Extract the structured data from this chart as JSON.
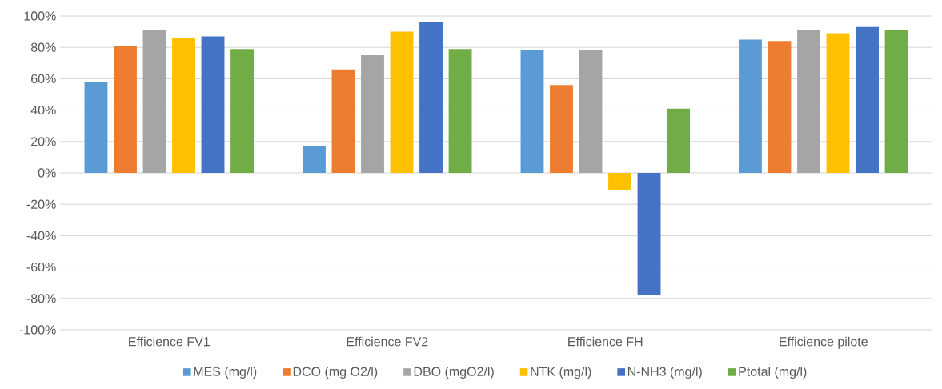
{
  "chart_data": {
    "type": "bar",
    "categories": [
      "Efficience FV1",
      "Efficience FV2",
      "Efficience FH",
      "Efficience pilote"
    ],
    "series": [
      {
        "name": "MES (mg/l)",
        "color": "#5b9bd5",
        "values": [
          58,
          17,
          78,
          85
        ]
      },
      {
        "name": "DCO (mg O2/l)",
        "color": "#ed7d31",
        "values": [
          81,
          66,
          56,
          84
        ]
      },
      {
        "name": "DBO (mgO2/l)",
        "color": "#a5a5a5",
        "values": [
          91,
          75,
          78,
          91
        ]
      },
      {
        "name": "NTK (mg/l)",
        "color": "#ffc000",
        "values": [
          86,
          90,
          -11,
          89
        ]
      },
      {
        "name": "N-NH3 (mg/l)",
        "color": "#4472c4",
        "values": [
          87,
          96,
          -78,
          93
        ]
      },
      {
        "name": "Ptotal (mg/l)",
        "color": "#70ad47",
        "values": [
          79,
          79,
          41,
          91
        ]
      }
    ],
    "ylim": [
      -100,
      100
    ],
    "yticks": [
      {
        "value": -100,
        "label": "-100%"
      },
      {
        "value": -80,
        "label": "-80%"
      },
      {
        "value": -60,
        "label": "-60%"
      },
      {
        "value": -40,
        "label": "-40%"
      },
      {
        "value": -20,
        "label": "-20%"
      },
      {
        "value": 0,
        "label": "0%"
      },
      {
        "value": 20,
        "label": "20%"
      },
      {
        "value": 40,
        "label": "40%"
      },
      {
        "value": 60,
        "label": "60%"
      },
      {
        "value": 80,
        "label": "80%"
      },
      {
        "value": 100,
        "label": "100%"
      }
    ],
    "grid": "y",
    "legend": "bottom"
  }
}
